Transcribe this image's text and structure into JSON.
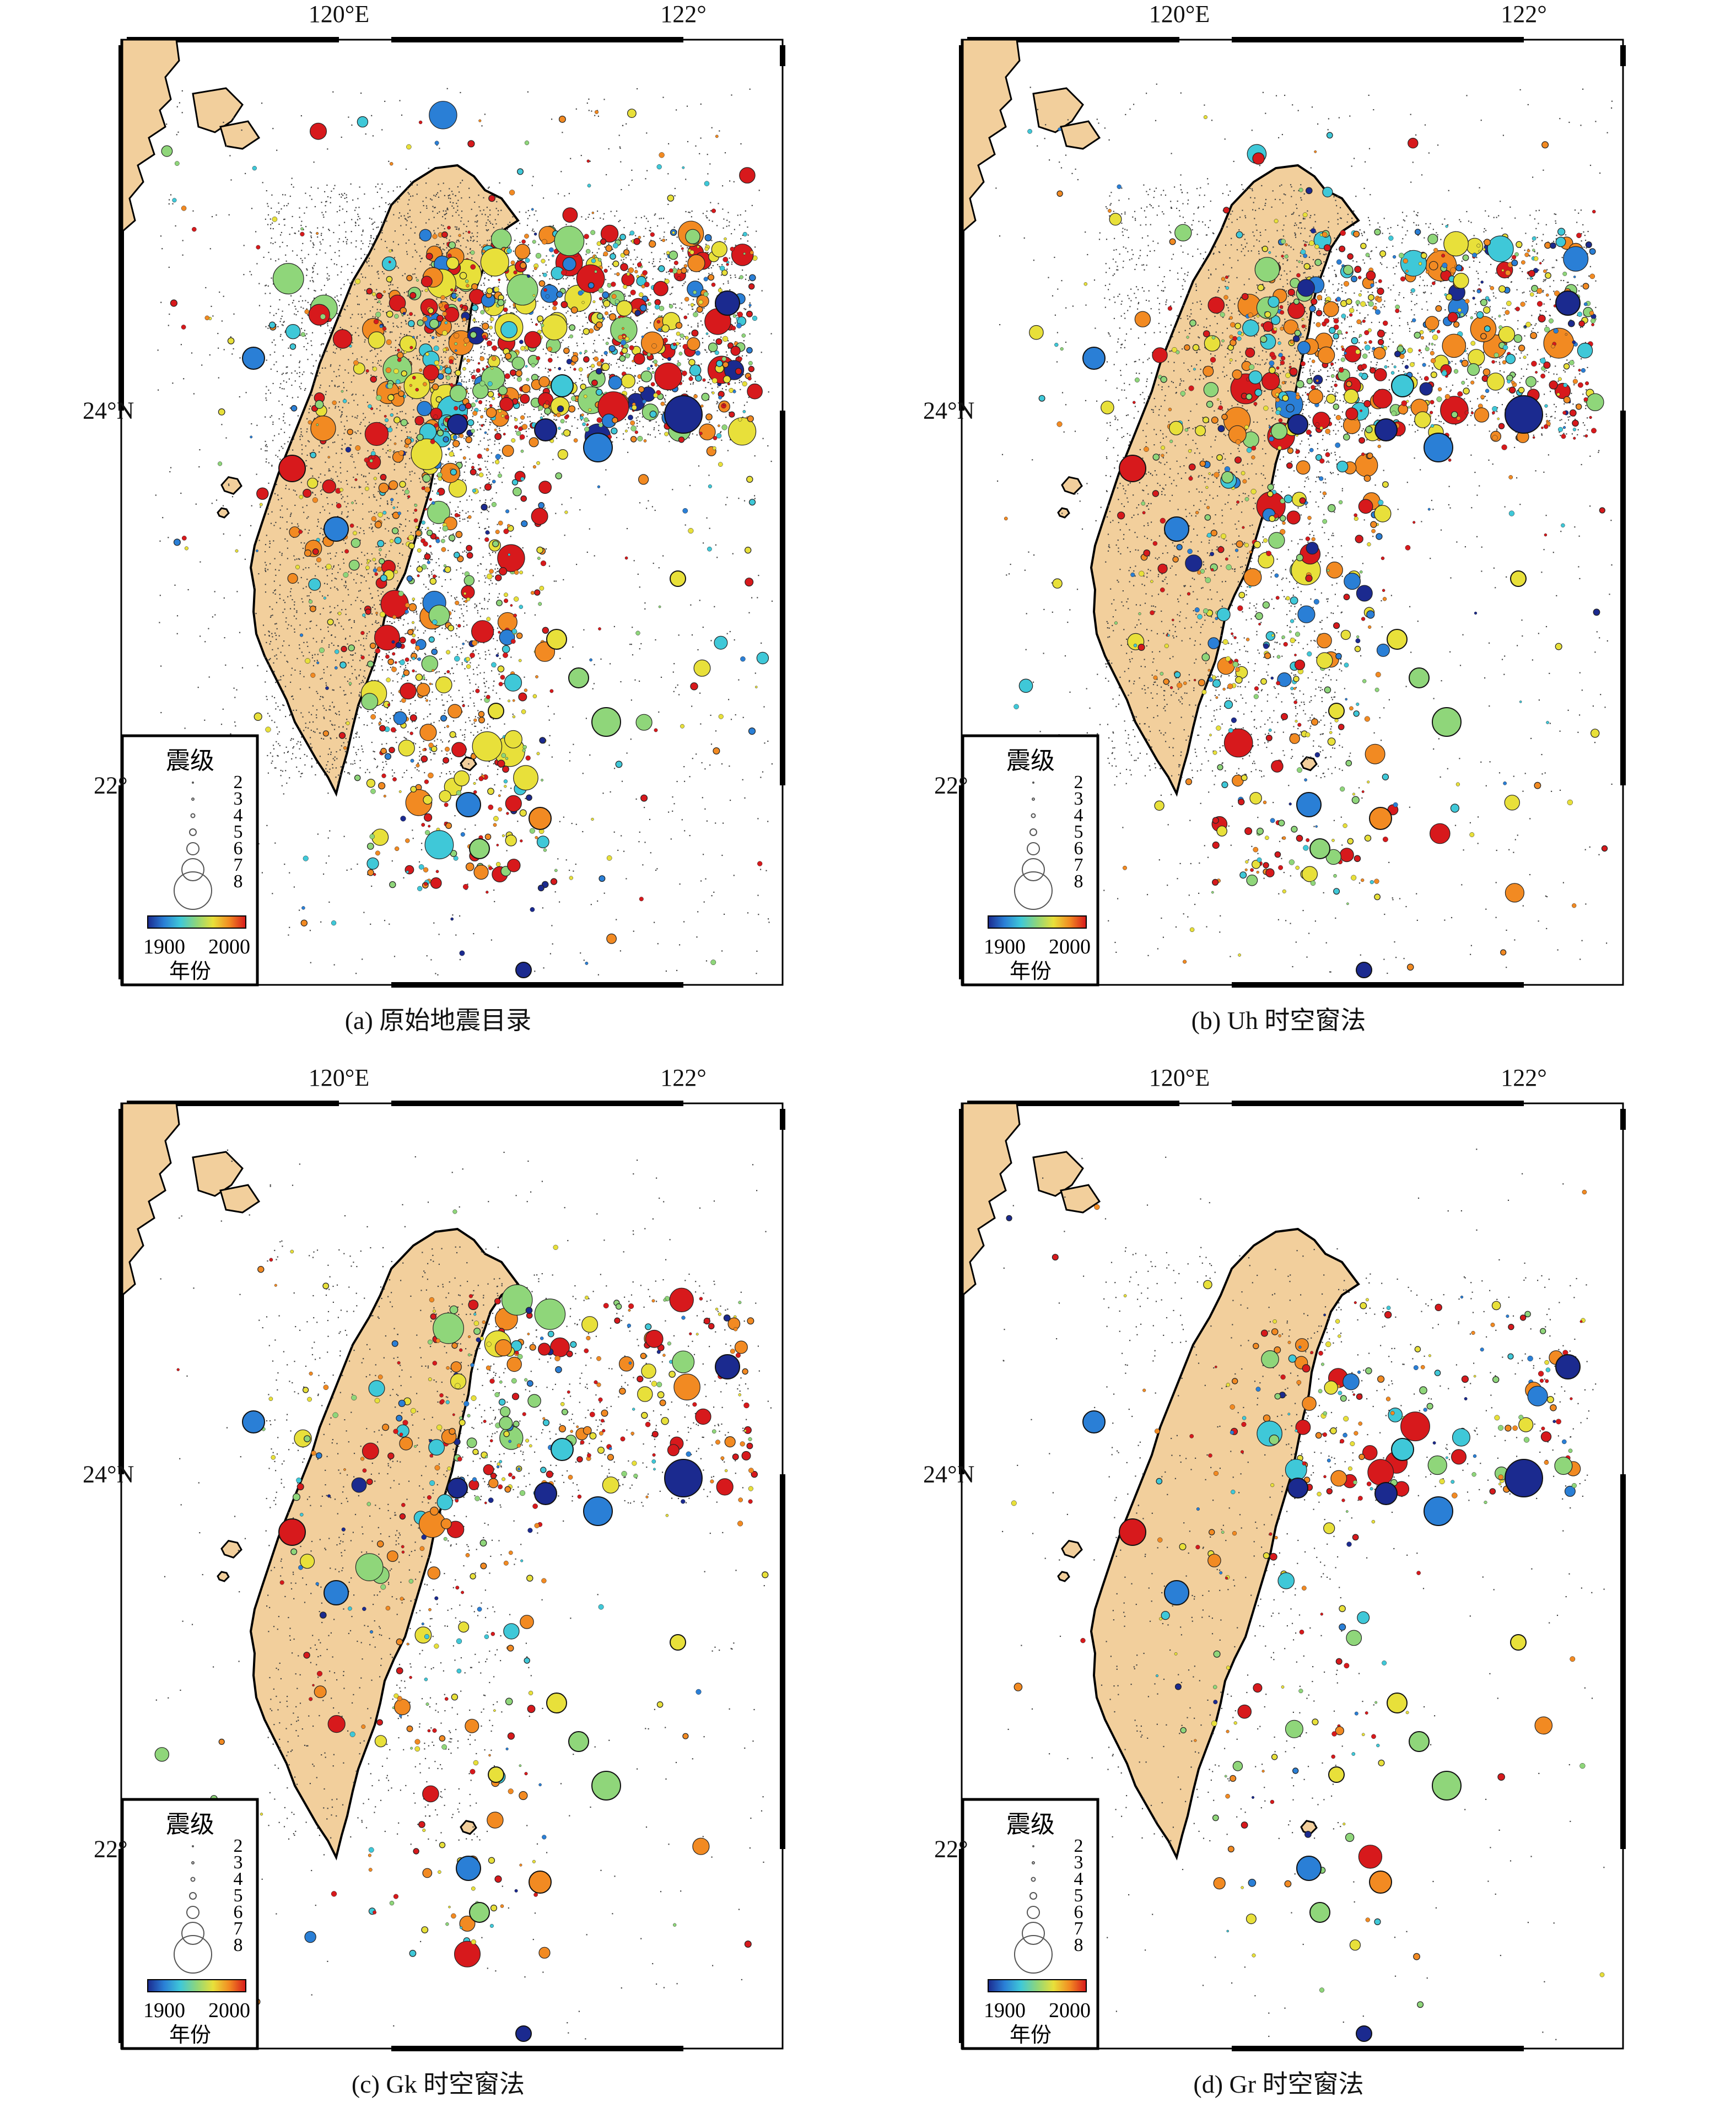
{
  "axes": {
    "lon_ticks": [
      "120°E",
      "122°"
    ],
    "lat_ticks": [
      "24°N",
      "22°"
    ]
  },
  "legend": {
    "title": "震级",
    "magnitudes": [
      "2",
      "3",
      "4",
      "5",
      "6",
      "7",
      "8"
    ],
    "colorbar_min": "1900",
    "colorbar_max": "2000",
    "colorbar_label": "年份",
    "colorbar_colors": [
      "#1b2a8f",
      "#2a7fd6",
      "#3fc8d8",
      "#8fd67a",
      "#e8e03a",
      "#f28a22",
      "#d7191c"
    ]
  },
  "land_color": "#f2cf9c",
  "background_color": "#ffffff",
  "panels": [
    {
      "id": "a",
      "caption": "(a) 原始地震目录",
      "density": 1.0
    },
    {
      "id": "b",
      "caption": "(b) Uh 时空窗法",
      "density": 0.7
    },
    {
      "id": "c",
      "caption": "(c) Gk 时空窗法",
      "density": 0.3
    },
    {
      "id": "d",
      "caption": "(d) Gr 时空窗法",
      "density": 0.18
    }
  ]
}
